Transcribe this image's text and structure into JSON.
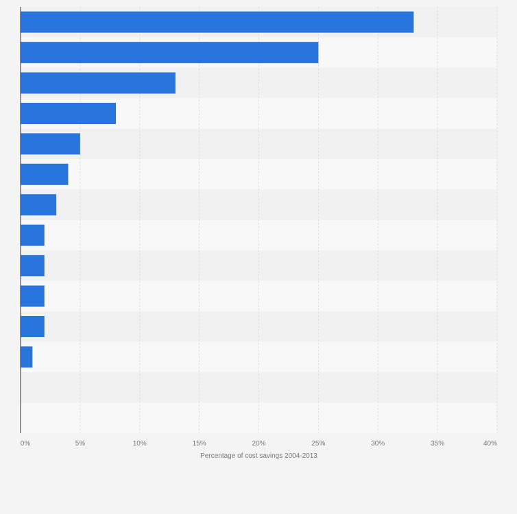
{
  "chart_data": {
    "type": "bar",
    "orientation": "horizontal",
    "title": "",
    "xlabel": "Percentage of cost savings 2004-2013",
    "ylabel": "",
    "categories": [
      "",
      "",
      "",
      "",
      "",
      "",
      "",
      "",
      "",
      "",
      "",
      "",
      "",
      ""
    ],
    "values": [
      33,
      25,
      13,
      8,
      5,
      4,
      3,
      2,
      2,
      2,
      2,
      1,
      0,
      0
    ],
    "xlim": [
      0,
      40
    ],
    "x_ticks": [
      0,
      5,
      10,
      15,
      20,
      25,
      30,
      35,
      40
    ],
    "x_tick_labels": [
      "0%",
      "5%",
      "10%",
      "15%",
      "20%",
      "25%",
      "30%",
      "35%",
      "40%"
    ],
    "grid": true,
    "legend": "none",
    "colors": {
      "bar": "#2876dd",
      "background": "#f4f4f4",
      "row_light": "#f8f8f8",
      "row_dark": "#f1f1f1",
      "grid": "#dddddd",
      "axis": "#333333",
      "text": "#777777"
    }
  }
}
